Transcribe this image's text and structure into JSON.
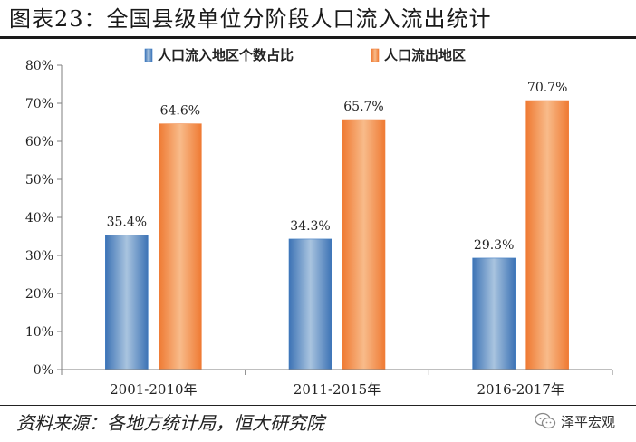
{
  "header": {
    "title": "图表23：全国县级单位分阶段人口流入流出统计"
  },
  "chart_data": {
    "type": "bar",
    "categories": [
      "2001-2010年",
      "2011-2015年",
      "2016-2017年"
    ],
    "series": [
      {
        "name": "人口流入地区个数占比",
        "values": [
          35.4,
          34.3,
          29.3
        ],
        "labels": [
          "35.4%",
          "34.3%",
          "29.3%"
        ],
        "color": "#3e7cc4"
      },
      {
        "name": "人口流出地区",
        "values": [
          64.6,
          65.7,
          70.7
        ],
        "labels": [
          "64.6%",
          "65.7%",
          "70.7%"
        ],
        "color": "#f0803c"
      }
    ],
    "ylim": [
      0,
      80
    ],
    "yticks": [
      "0%",
      "10%",
      "20%",
      "30%",
      "40%",
      "50%",
      "60%",
      "70%",
      "80%"
    ],
    "legend_position": "top-center",
    "grid": false
  },
  "footer": {
    "source": "资料来源：各地方统计局，恒大研究院",
    "brand_name": "泽平宏观",
    "brand_icon": "wechat-icon"
  }
}
